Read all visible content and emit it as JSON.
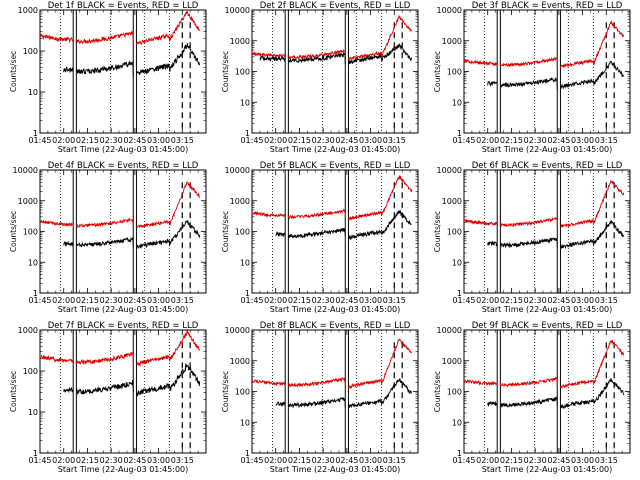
{
  "figure": {
    "name": "rhessi-detector-rates-grid"
  },
  "chart_data": {
    "type": "line",
    "x_axis": {
      "label": "Start Time (22-Aug-03 01:45:00)",
      "ticks": [
        "01:45",
        "02:00",
        "02:15",
        "02:30",
        "02:45",
        "03:00",
        "03:15"
      ],
      "tick_minutes": [
        0,
        15,
        30,
        45,
        60,
        75,
        90
      ],
      "range_minutes": [
        0,
        105
      ]
    },
    "y_axis": {
      "label": "Counts/sec",
      "scale": "log",
      "ticks": [
        "1",
        "10",
        "100",
        "1000",
        "10000"
      ],
      "tick_values": [
        1,
        10,
        100,
        1000,
        10000
      ]
    },
    "legend": {
      "black": "BLACK = Events,",
      "red": "RED = LLD"
    },
    "markers": {
      "dotted_minutes": [
        13,
        44.5,
        66,
        82
      ],
      "solid_minutes": [
        21,
        23,
        59,
        61
      ],
      "dashed_minutes": [
        90,
        95
      ]
    },
    "panels": [
      {
        "title": "Det 1f",
        "ymax": 1000,
        "events_level": 35,
        "lld_level": 190,
        "events_peak": 140,
        "lld_peak": 900,
        "events_start_min": 15
      },
      {
        "title": "Det 2f",
        "ymax": 10000,
        "events_level": 250,
        "lld_level": 320,
        "events_peak": 700,
        "lld_peak": 6000,
        "events_start_min": 5
      },
      {
        "title": "Det 3f",
        "ymax": 10000,
        "events_level": 40,
        "lld_level": 180,
        "events_peak": 200,
        "lld_peak": 4000,
        "events_start_min": 15
      },
      {
        "title": "Det 4f",
        "ymax": 10000,
        "events_level": 40,
        "lld_level": 170,
        "events_peak": 210,
        "lld_peak": 4000,
        "events_start_min": 15
      },
      {
        "title": "Det 5f",
        "ymax": 10000,
        "events_level": 80,
        "lld_level": 330,
        "events_peak": 450,
        "lld_peak": 6000,
        "events_start_min": 15
      },
      {
        "title": "Det 6f",
        "ymax": 10000,
        "events_level": 40,
        "lld_level": 180,
        "events_peak": 200,
        "lld_peak": 4500,
        "events_start_min": 15
      },
      {
        "title": "Det 7f",
        "ymax": 1000,
        "events_level": 35,
        "lld_level": 180,
        "events_peak": 140,
        "lld_peak": 900,
        "events_start_min": 15
      },
      {
        "title": "Det 8f",
        "ymax": 10000,
        "events_level": 40,
        "lld_level": 180,
        "events_peak": 250,
        "lld_peak": 5000,
        "events_start_min": 15
      },
      {
        "title": "Det 9f",
        "ymax": 10000,
        "events_level": 40,
        "lld_level": 180,
        "events_peak": 250,
        "lld_peak": 4500,
        "events_start_min": 15
      }
    ],
    "colors": {
      "events": "#000000",
      "lld": "#e00000",
      "axes": "#000000"
    }
  }
}
